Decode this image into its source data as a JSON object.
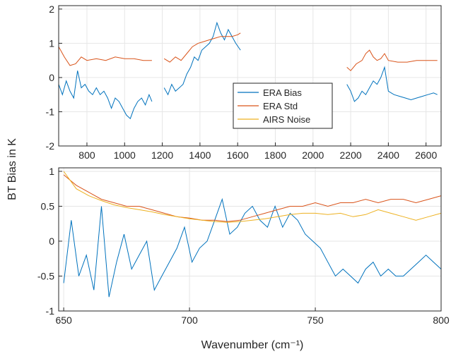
{
  "chart_data": [
    {
      "type": "line",
      "xlim": [
        650,
        2680
      ],
      "ylim": [
        -2,
        2.1
      ],
      "xticks": [
        800,
        1000,
        1200,
        1400,
        1600,
        1800,
        2000,
        2200,
        2400,
        2600
      ],
      "xtick_labels": [
        "800",
        "1000",
        "1200",
        "1400",
        "1600",
        "1800",
        "2000",
        "2200",
        "2400",
        "2600"
      ],
      "yticks": [
        -2,
        -1,
        0,
        1,
        2
      ],
      "ytick_labels": [
        "-2",
        "-1",
        "0",
        "1",
        "2"
      ],
      "grid": true,
      "legend": {
        "placement": "inside-center-right",
        "entries": [
          "ERA Bias",
          "ERA Std",
          "AIRS Noise"
        ]
      },
      "series": [
        {
          "name": "ERA Bias",
          "color": "#0072BD",
          "segments": [
            {
              "x": [
                650,
                670,
                690,
                710,
                730,
                750,
                770,
                790,
                810,
                830,
                850,
                870,
                890,
                910,
                930,
                950,
                970,
                990,
                1010,
                1030,
                1050,
                1070,
                1090,
                1110,
                1130,
                1145
              ],
              "y": [
                -0.2,
                -0.5,
                -0.1,
                -0.4,
                -0.6,
                0.2,
                -0.3,
                -0.2,
                -0.4,
                -0.5,
                -0.3,
                -0.5,
                -0.4,
                -0.6,
                -0.9,
                -0.6,
                -0.7,
                -0.9,
                -1.1,
                -1.2,
                -0.9,
                -0.7,
                -0.6,
                -0.8,
                -0.5,
                -0.7
              ]
            },
            {
              "x": [
                1210,
                1230,
                1250,
                1270,
                1290,
                1310,
                1330,
                1350,
                1370,
                1390,
                1410,
                1430,
                1450,
                1470,
                1490,
                1510,
                1530,
                1550,
                1570,
                1590,
                1615
              ],
              "y": [
                -0.3,
                -0.5,
                -0.2,
                -0.4,
                -0.3,
                -0.2,
                0.1,
                0.3,
                0.6,
                0.5,
                0.8,
                0.9,
                1.0,
                1.2,
                1.6,
                1.3,
                1.1,
                1.4,
                1.2,
                1.0,
                0.8
              ]
            },
            {
              "x": [
                2180,
                2200,
                2220,
                2240,
                2260,
                2280,
                2300,
                2320,
                2340,
                2360,
                2380,
                2400,
                2430,
                2460,
                2490,
                2520,
                2550,
                2580,
                2610,
                2640,
                2660
              ],
              "y": [
                -0.2,
                -0.4,
                -0.7,
                -0.6,
                -0.4,
                -0.5,
                -0.3,
                -0.1,
                -0.2,
                0.0,
                0.3,
                -0.4,
                -0.5,
                -0.55,
                -0.6,
                -0.65,
                -0.6,
                -0.55,
                -0.5,
                -0.45,
                -0.5
              ]
            }
          ]
        },
        {
          "name": "ERA Std",
          "color": "#D95319",
          "segments": [
            {
              "x": [
                650,
                680,
                710,
                740,
                770,
                800,
                850,
                900,
                950,
                1000,
                1050,
                1100,
                1145
              ],
              "y": [
                0.9,
                0.6,
                0.35,
                0.4,
                0.6,
                0.5,
                0.55,
                0.5,
                0.6,
                0.55,
                0.55,
                0.5,
                0.5
              ]
            },
            {
              "x": [
                1210,
                1240,
                1270,
                1300,
                1330,
                1360,
                1390,
                1420,
                1450,
                1480,
                1510,
                1540,
                1570,
                1600,
                1615
              ],
              "y": [
                0.55,
                0.45,
                0.6,
                0.5,
                0.7,
                0.9,
                1.0,
                1.05,
                1.1,
                1.15,
                1.2,
                1.2,
                1.2,
                1.25,
                1.3
              ]
            },
            {
              "x": [
                2180,
                2200,
                2230,
                2260,
                2280,
                2300,
                2320,
                2340,
                2360,
                2380,
                2400,
                2450,
                2500,
                2550,
                2600,
                2660
              ],
              "y": [
                0.3,
                0.2,
                0.4,
                0.5,
                0.7,
                0.8,
                0.6,
                0.5,
                0.55,
                0.7,
                0.5,
                0.45,
                0.45,
                0.5,
                0.5,
                0.5
              ]
            }
          ]
        }
      ]
    },
    {
      "type": "line",
      "xlabel": "Wavenumber (cm⁻¹)",
      "xlim": [
        648,
        800
      ],
      "ylim": [
        -1,
        1.05
      ],
      "xticks": [
        650,
        700,
        750,
        800
      ],
      "xtick_labels": [
        "650",
        "700",
        "750",
        "800"
      ],
      "yticks": [
        -1,
        -0.5,
        0,
        0.5,
        1
      ],
      "ytick_labels": [
        "-1",
        "-0.5",
        "0",
        "0.5",
        "1"
      ],
      "grid": true,
      "series": [
        {
          "name": "ERA Bias",
          "color": "#0072BD",
          "x": [
            650,
            653,
            656,
            659,
            662,
            665,
            668,
            671,
            674,
            677,
            680,
            683,
            686,
            689,
            692,
            695,
            698,
            701,
            704,
            707,
            710,
            713,
            716,
            719,
            722,
            725,
            728,
            731,
            734,
            737,
            740,
            743,
            746,
            749,
            752,
            755,
            758,
            761,
            764,
            767,
            770,
            773,
            776,
            779,
            782,
            785,
            788,
            791,
            794,
            797,
            800
          ],
          "y": [
            -0.6,
            0.3,
            -0.5,
            -0.2,
            -0.7,
            0.5,
            -0.8,
            -0.3,
            0.1,
            -0.4,
            -0.2,
            0.0,
            -0.7,
            -0.5,
            -0.3,
            -0.1,
            0.2,
            -0.3,
            -0.1,
            0.0,
            0.3,
            0.6,
            0.1,
            0.2,
            0.4,
            0.5,
            0.3,
            0.2,
            0.5,
            0.2,
            0.4,
            0.3,
            0.1,
            0.0,
            -0.1,
            -0.3,
            -0.5,
            -0.4,
            -0.5,
            -0.6,
            -0.4,
            -0.3,
            -0.5,
            -0.4,
            -0.5,
            -0.5,
            -0.4,
            -0.3,
            -0.2,
            -0.3,
            -0.4
          ]
        },
        {
          "name": "ERA Std",
          "color": "#D95319",
          "x": [
            650,
            655,
            660,
            665,
            670,
            675,
            680,
            685,
            690,
            695,
            700,
            705,
            710,
            715,
            720,
            725,
            730,
            735,
            740,
            745,
            750,
            755,
            760,
            765,
            770,
            775,
            780,
            785,
            790,
            795,
            800
          ],
          "y": [
            0.95,
            0.8,
            0.7,
            0.6,
            0.55,
            0.5,
            0.5,
            0.45,
            0.4,
            0.35,
            0.33,
            0.3,
            0.3,
            0.28,
            0.3,
            0.35,
            0.4,
            0.45,
            0.5,
            0.5,
            0.55,
            0.5,
            0.55,
            0.55,
            0.6,
            0.55,
            0.6,
            0.6,
            0.55,
            0.6,
            0.65
          ]
        },
        {
          "name": "AIRS Noise",
          "color": "#EDB120",
          "x": [
            650,
            655,
            660,
            665,
            670,
            675,
            680,
            685,
            690,
            695,
            700,
            705,
            710,
            715,
            720,
            725,
            730,
            735,
            740,
            745,
            750,
            755,
            760,
            765,
            770,
            775,
            780,
            785,
            790,
            795,
            800
          ],
          "y": [
            1.0,
            0.75,
            0.65,
            0.58,
            0.52,
            0.48,
            0.45,
            0.42,
            0.38,
            0.35,
            0.32,
            0.3,
            0.28,
            0.27,
            0.28,
            0.3,
            0.32,
            0.35,
            0.38,
            0.4,
            0.4,
            0.38,
            0.4,
            0.35,
            0.38,
            0.45,
            0.4,
            0.35,
            0.3,
            0.35,
            0.4
          ]
        }
      ]
    }
  ],
  "shared": {
    "ylabel": "BT Bias in K"
  }
}
